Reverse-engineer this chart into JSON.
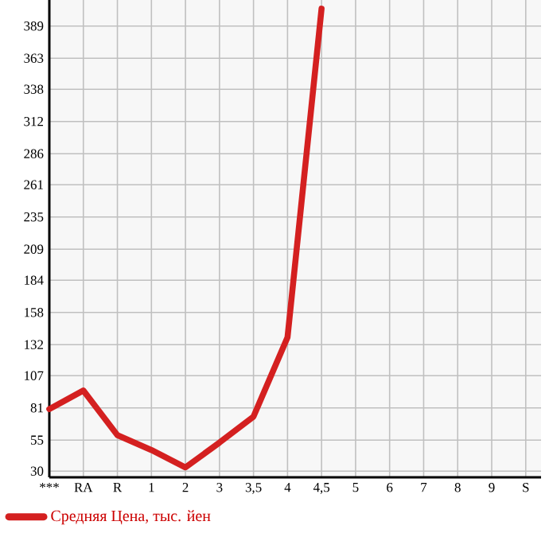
{
  "chart_data": {
    "type": "line",
    "categories": [
      "***",
      "RA",
      "R",
      "1",
      "2",
      "3",
      "3,5",
      "4",
      "4,5",
      "5",
      "6",
      "7",
      "8",
      "9",
      "S"
    ],
    "series": [
      {
        "name": "Средняя Цена, тыс. йен",
        "color": "#d42020",
        "values": [
          80,
          95,
          59,
          47,
          33,
          53,
          74,
          138,
          403,
          null,
          null,
          null,
          null,
          null,
          null
        ]
      }
    ],
    "ylim": [
      25,
      410
    ],
    "yticks": [
      30,
      55,
      81,
      107,
      132,
      158,
      184,
      209,
      235,
      261,
      286,
      312,
      338,
      363,
      389
    ],
    "grid": true,
    "legend": "bottom left",
    "marker": "none",
    "line_style": "solid"
  }
}
